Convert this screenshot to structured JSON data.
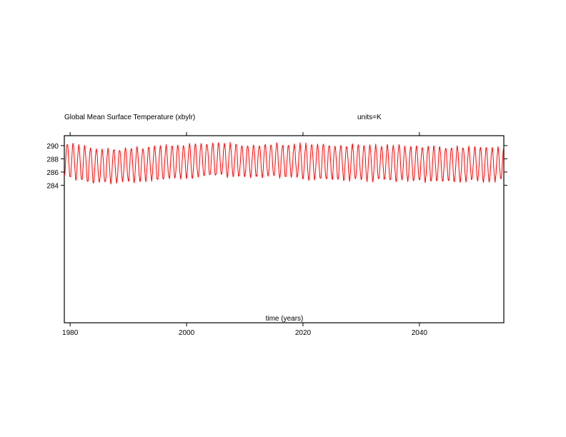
{
  "chart_data": {
    "type": "line",
    "title": "Global Mean Surface Temperature (xbylr)",
    "units_label": "units=K",
    "xlabel": "time (years)",
    "ylabel": "",
    "xlim": [
      1979.0,
      2054.5
    ],
    "ylim": [
      263.2,
      291.5
    ],
    "x_ticks": [
      {
        "value": 1980,
        "label": "1980"
      },
      {
        "value": 2000,
        "label": "2000"
      },
      {
        "value": 2020,
        "label": "2020"
      },
      {
        "value": 2040,
        "label": "2040"
      }
    ],
    "y_ticks": [
      {
        "value": 284,
        "label": "284"
      },
      {
        "value": 286,
        "label": "286"
      },
      {
        "value": 288,
        "label": "288"
      },
      {
        "value": 290,
        "label": "290"
      }
    ],
    "grid": false,
    "legend": "none",
    "series": [
      {
        "color": "#ff0000",
        "x_start": 1979.0,
        "x_end": 2054.5,
        "sampling": "monthly",
        "annual_cycle_max": [
          {
            "x": 1979.5,
            "y": 290.3
          },
          {
            "x": 1985.5,
            "y": 289.4
          },
          {
            "x": 1995.5,
            "y": 289.9
          },
          {
            "x": 2003.5,
            "y": 290.3
          },
          {
            "x": 2010.5,
            "y": 290.2
          },
          {
            "x": 2020.5,
            "y": 290.2
          },
          {
            "x": 2030.5,
            "y": 290.0
          },
          {
            "x": 2040.5,
            "y": 289.9
          },
          {
            "x": 2054.5,
            "y": 289.6
          }
        ],
        "annual_cycle_min": [
          {
            "x": 1979.0,
            "y": 285.4
          },
          {
            "x": 1982.0,
            "y": 284.6
          },
          {
            "x": 1986.0,
            "y": 284.3
          },
          {
            "x": 1995.0,
            "y": 284.8
          },
          {
            "x": 2005.0,
            "y": 285.4
          },
          {
            "x": 2015.0,
            "y": 285.2
          },
          {
            "x": 2025.0,
            "y": 284.8
          },
          {
            "x": 2035.0,
            "y": 284.7
          },
          {
            "x": 2045.0,
            "y": 284.6
          },
          {
            "x": 2054.5,
            "y": 284.7
          }
        ]
      }
    ]
  }
}
